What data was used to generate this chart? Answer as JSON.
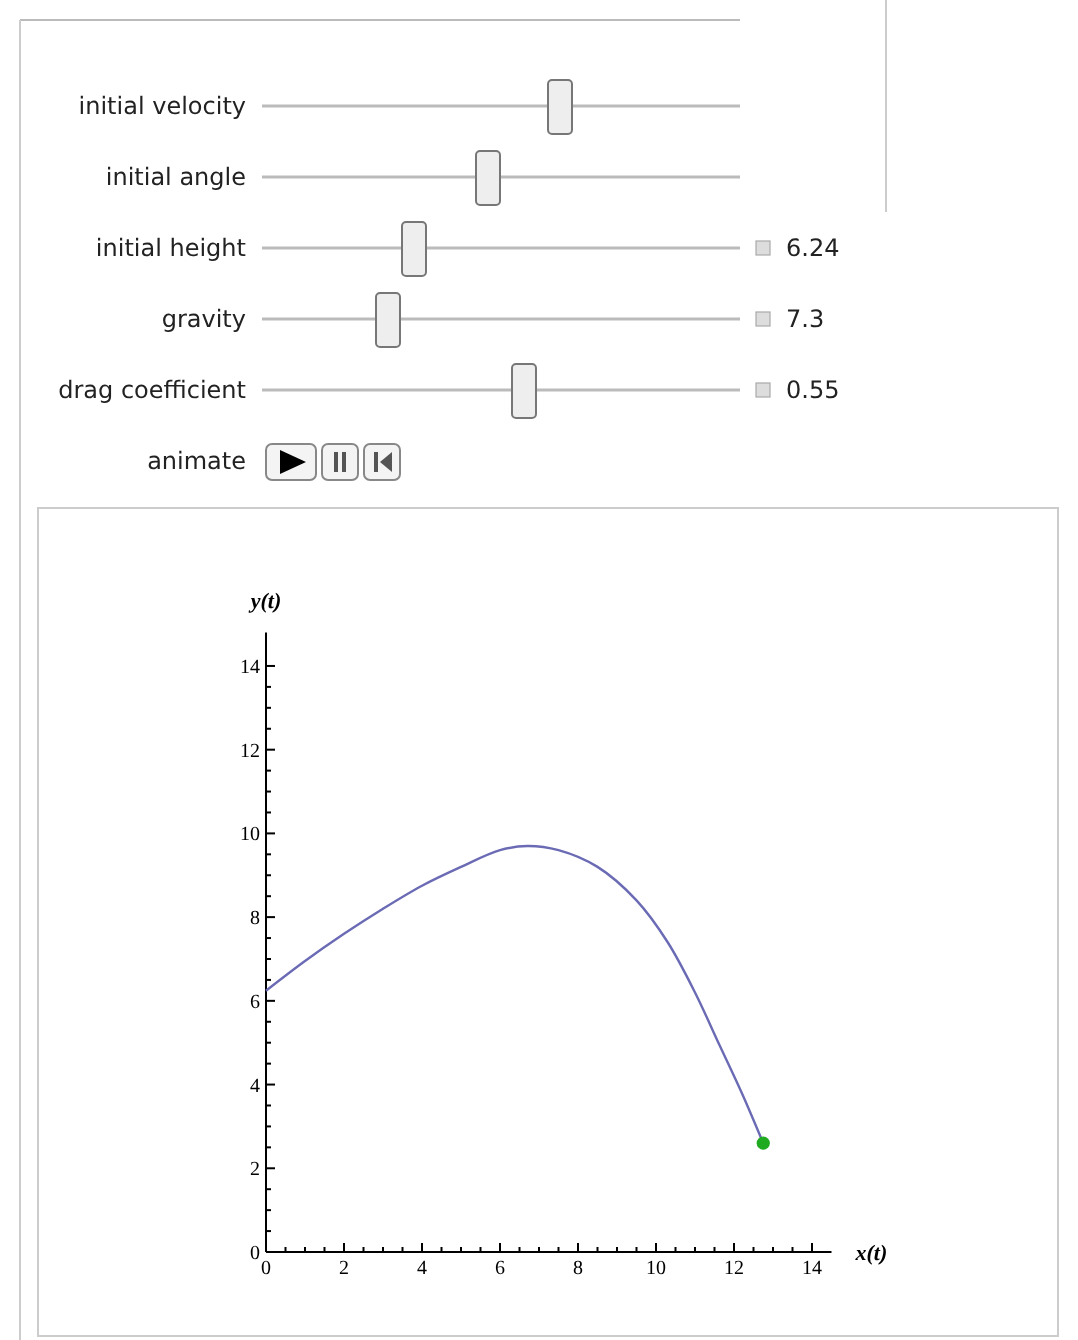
{
  "chart_data": {
    "type": "line",
    "xlabel": "x(t)",
    "ylabel": "y(t)",
    "annotations": [
      "initial velocity",
      "initial angle",
      "initial height",
      "6.24",
      "gravity",
      "7.3",
      "drag coefficient",
      "0.55",
      "animate"
    ],
    "xlim": [
      0,
      14.5
    ],
    "ylim": [
      0,
      14.8
    ],
    "xticks": [
      0,
      {
        "value": 0.5,
        "label": null
      },
      {
        "value": 1,
        "label": null
      },
      {
        "value": 1.5,
        "label": null
      },
      2,
      {
        "value": 2.5,
        "label": null
      },
      {
        "value": 3,
        "label": null
      },
      {
        "value": 3.5,
        "label": null
      },
      4,
      {
        "value": 4.5,
        "label": null
      },
      {
        "value": 5,
        "label": null
      },
      {
        "value": 5.5,
        "label": null
      },
      6,
      {
        "value": 6.5,
        "label": null
      },
      {
        "value": 7,
        "label": null
      },
      {
        "value": 7.5,
        "label": null
      },
      8,
      {
        "value": 8.5,
        "label": null
      },
      {
        "value": 9,
        "label": null
      },
      {
        "value": 9.5,
        "label": null
      },
      10,
      {
        "value": 10.5,
        "label": null
      },
      {
        "value": 11,
        "label": null
      },
      {
        "value": 11.5,
        "label": null
      },
      12,
      {
        "value": 12.5,
        "label": null
      },
      {
        "value": 13,
        "label": null
      },
      {
        "value": 13.5,
        "label": null
      },
      14
    ],
    "yticks": [
      0,
      {
        "value": 0.5,
        "label": null
      },
      {
        "value": 1,
        "label": null
      },
      {
        "value": 1.5,
        "label": null
      },
      2,
      {
        "value": 2.5,
        "label": null
      },
      {
        "value": 3,
        "label": null
      },
      {
        "value": 3.5,
        "label": null
      },
      4,
      {
        "value": 4.5,
        "label": null
      },
      {
        "value": 5,
        "label": null
      },
      {
        "value": 5.5,
        "label": null
      },
      6,
      {
        "value": 6.5,
        "label": null
      },
      {
        "value": 7,
        "label": null
      },
      {
        "value": 7.5,
        "label": null
      },
      8,
      {
        "value": 8.5,
        "label": null
      },
      {
        "value": 9,
        "label": null
      },
      {
        "value": 9.5,
        "label": null
      },
      10,
      {
        "value": 10.5,
        "label": null
      },
      {
        "value": 11,
        "label": null
      },
      {
        "value": 11.5,
        "label": null
      },
      12,
      {
        "value": 12.5,
        "label": null
      },
      {
        "value": 13,
        "label": null
      },
      {
        "value": 13.5,
        "label": null
      },
      14
    ],
    "series": [
      {
        "color": "#6b6bb5",
        "x": [
          0,
          1,
          2,
          3,
          4,
          5,
          6,
          6.7,
          7.5,
          8.5,
          9.5,
          10.3,
          11,
          11.6,
          12.2,
          12.75
        ],
        "values": [
          6.24,
          6.95,
          7.6,
          8.2,
          8.75,
          9.2,
          9.6,
          9.7,
          9.6,
          9.2,
          8.4,
          7.4,
          6.2,
          5.0,
          3.8,
          2.6
        ]
      },
      {
        "type": "scatter",
        "color": "#1faa1f",
        "marker": "circle",
        "x": [
          12.75
        ],
        "values": [
          2.6
        ]
      }
    ]
  }
}
